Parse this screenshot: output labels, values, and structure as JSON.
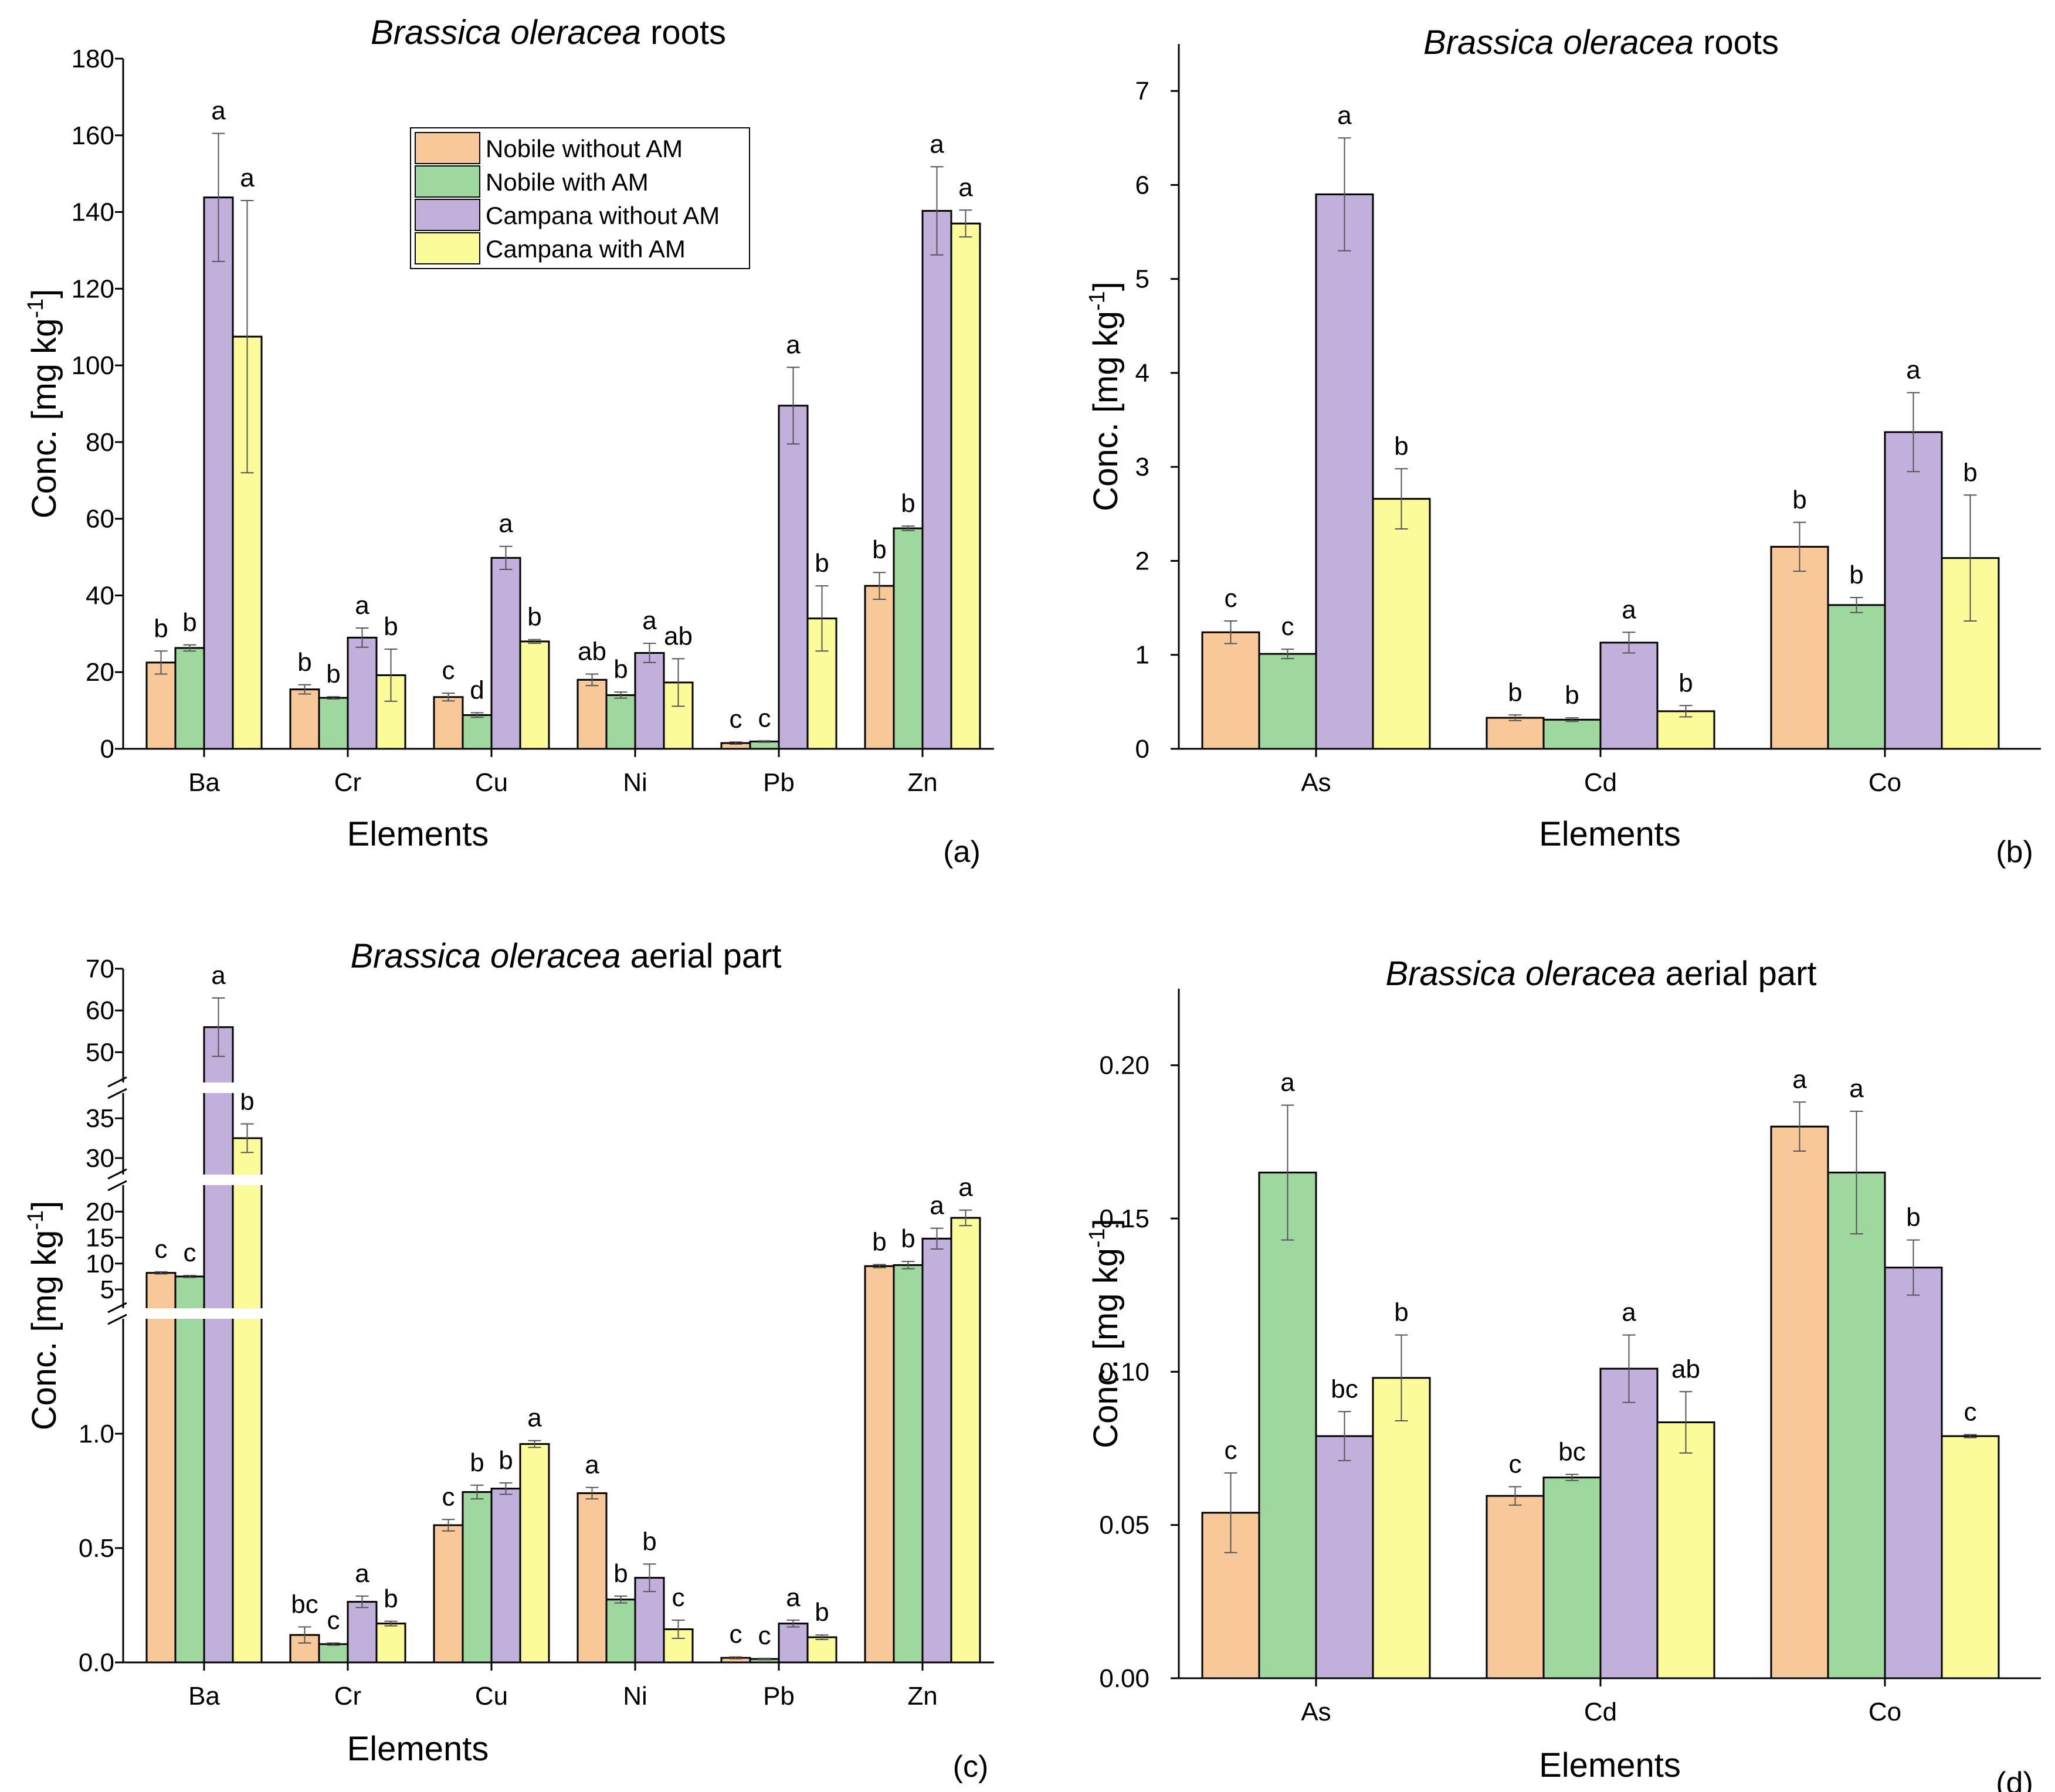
{
  "colors": {
    "Nobile without AM": "#f9c898",
    "Nobile with AM": "#9ed89e",
    "Campana without AM": "#c2b0dc",
    "Campana with AM": "#fbfb9a"
  },
  "chart_data": [
    {
      "type": "bar",
      "panel_label": "(a)",
      "title_italic": "Brassica oleracea",
      "title_rest": " roots",
      "xlabel": "Elements",
      "ylabel": "Conc. [mg kg",
      "ylabel_sup": "-1",
      "ylabel_end": "]",
      "ylim": [
        0,
        180
      ],
      "yticks": [
        "0",
        "20",
        "40",
        "60",
        "80",
        "100",
        "120",
        "140",
        "160",
        "180"
      ],
      "categories": [
        "Ba",
        "Cr",
        "Cu",
        "Ni",
        "Pb",
        "Zn"
      ],
      "legend": [
        "Nobile without AM",
        "Nobile with AM",
        "Campana without AM",
        "Campana with AM"
      ],
      "legend_position": "top-center",
      "series": [
        {
          "name": "Nobile without AM",
          "values": [
            22.5,
            15.5,
            13.5,
            18,
            1.5,
            42.5
          ],
          "errors": [
            3,
            1.2,
            1,
            1.5,
            0.3,
            3.5
          ],
          "letters": [
            "b",
            "b",
            "c",
            "ab",
            "c",
            "b"
          ]
        },
        {
          "name": "Nobile with AM",
          "values": [
            26.3,
            13.3,
            8.8,
            14,
            1.9,
            57.5
          ],
          "errors": [
            0.8,
            0.3,
            0.6,
            0.8,
            0.2,
            0.6
          ],
          "letters": [
            "b",
            "b",
            "d",
            "b",
            "c",
            "b"
          ]
        },
        {
          "name": "Campana without AM",
          "values": [
            143.8,
            29,
            49.8,
            25,
            89.5,
            140.3
          ],
          "errors": [
            16.7,
            2.5,
            3,
            2.5,
            10,
            11.5
          ],
          "letters": [
            "a",
            "a",
            "a",
            "a",
            "a",
            "a"
          ]
        },
        {
          "name": "Campana with AM",
          "values": [
            107.5,
            19.2,
            28,
            17.3,
            34,
            137
          ],
          "errors": [
            35.5,
            6.8,
            0.5,
            6.2,
            8.5,
            3.5
          ],
          "letters": [
            "a",
            "b",
            "b",
            "ab",
            "b",
            "a"
          ]
        }
      ]
    },
    {
      "type": "bar",
      "panel_label": "(b)",
      "title_italic": "Brassica oleracea",
      "title_rest": " roots",
      "xlabel": "Elements",
      "ylabel": "Conc. [mg kg",
      "ylabel_sup": "-1",
      "ylabel_end": "]",
      "ylim": [
        0,
        7.5
      ],
      "yticks": [
        "0",
        "1",
        "2",
        "3",
        "4",
        "5",
        "6",
        "7"
      ],
      "categories": [
        "As",
        "Cd",
        "Co"
      ],
      "series": [
        {
          "name": "Nobile without AM",
          "values": [
            1.24,
            0.33,
            2.15
          ],
          "errors": [
            0.12,
            0.03,
            0.26
          ],
          "letters": [
            "c",
            "b",
            "b"
          ]
        },
        {
          "name": "Nobile with AM",
          "values": [
            1.01,
            0.31,
            1.53
          ],
          "errors": [
            0.05,
            0.02,
            0.08
          ],
          "letters": [
            "c",
            "b",
            "b"
          ]
        },
        {
          "name": "Campana without AM",
          "values": [
            5.9,
            1.13,
            3.37
          ],
          "errors": [
            0.6,
            0.11,
            0.42
          ],
          "letters": [
            "a",
            "a",
            "a"
          ]
        },
        {
          "name": "Campana with AM",
          "values": [
            2.66,
            0.4,
            2.03
          ],
          "errors": [
            0.32,
            0.06,
            0.67
          ],
          "letters": [
            "b",
            "b",
            "b"
          ]
        }
      ]
    },
    {
      "type": "bar",
      "panel_label": "(c)",
      "title_italic": "Brassica oleracea",
      "title_rest": " aerial part",
      "xlabel": "Elements",
      "ylabel": "Conc. [mg kg",
      "ylabel_sup": "-1",
      "ylabel_end": "]",
      "broken_axis": true,
      "axis_segments": [
        {
          "range": [
            0,
            1.5
          ],
          "ticks": [
            "0.0",
            "0.5",
            "1.0"
          ]
        },
        {
          "range": [
            1.5,
            25
          ],
          "ticks": [
            "5",
            "10",
            "15",
            "20"
          ]
        },
        {
          "range": [
            28,
            37
          ],
          "ticks": [
            "30",
            "35"
          ]
        },
        {
          "range": [
            45,
            70
          ],
          "ticks": [
            "50",
            "60",
            "70"
          ]
        }
      ],
      "categories": [
        "Ba",
        "Cr",
        "Cu",
        "Ni",
        "Pb",
        "Zn"
      ],
      "series": [
        {
          "name": "Nobile without AM",
          "values": [
            8.2,
            0.12,
            0.6,
            0.74,
            0.02,
            9.5
          ],
          "errors": [
            0.2,
            0.035,
            0.025,
            0.025,
            0.004,
            0.3
          ],
          "letters": [
            "c",
            "bc",
            "c",
            "a",
            "c",
            "b"
          ]
        },
        {
          "name": "Nobile with AM",
          "values": [
            7.5,
            0.08,
            0.745,
            0.275,
            0.015,
            9.7
          ],
          "errors": [
            0.2,
            0.005,
            0.03,
            0.015,
            0.003,
            0.7
          ],
          "letters": [
            "c",
            "c",
            "b",
            "b",
            "c",
            "b"
          ]
        },
        {
          "name": "Campana without AM",
          "values": [
            56,
            0.265,
            0.76,
            0.37,
            0.17,
            14.8
          ],
          "errors": [
            7,
            0.025,
            0.025,
            0.06,
            0.015,
            2
          ],
          "letters": [
            "a",
            "a",
            "b",
            "b",
            "a",
            "a"
          ]
        },
        {
          "name": "Campana with AM",
          "values": [
            32.5,
            0.17,
            0.955,
            0.145,
            0.11,
            18.8
          ],
          "errors": [
            1.8,
            0.01,
            0.015,
            0.04,
            0.01,
            1.5
          ],
          "letters": [
            "b",
            "b",
            "a",
            "c",
            "b",
            "a"
          ]
        }
      ]
    },
    {
      "type": "bar",
      "panel_label": "(d)",
      "title_italic": "Brassica oleracea",
      "title_rest": " aerial part",
      "xlabel": "Elements",
      "ylabel": "Conc. [mg kg",
      "ylabel_sup": "-1",
      "ylabel_end": "]",
      "ylim": [
        0,
        0.225
      ],
      "yticks": [
        "0.00",
        "0.05",
        "0.10",
        "0.15",
        "0.20"
      ],
      "categories": [
        "As",
        "Cd",
        "Co"
      ],
      "series": [
        {
          "name": "Nobile without AM",
          "values": [
            0.054,
            0.0595,
            0.18
          ],
          "errors": [
            0.013,
            0.003,
            0.008
          ],
          "letters": [
            "c",
            "c",
            "a"
          ]
        },
        {
          "name": "Nobile with AM",
          "values": [
            0.165,
            0.0655,
            0.165
          ],
          "errors": [
            0.022,
            0.001,
            0.02
          ],
          "letters": [
            "a",
            "bc",
            "a"
          ]
        },
        {
          "name": "Campana without AM",
          "values": [
            0.079,
            0.101,
            0.134
          ],
          "errors": [
            0.008,
            0.011,
            0.009
          ],
          "letters": [
            "bc",
            "a",
            "b"
          ]
        },
        {
          "name": "Campana with AM",
          "values": [
            0.098,
            0.0835,
            0.079
          ],
          "errors": [
            0.014,
            0.01,
            0.0005
          ],
          "letters": [
            "b",
            "ab",
            "c"
          ]
        }
      ]
    }
  ]
}
